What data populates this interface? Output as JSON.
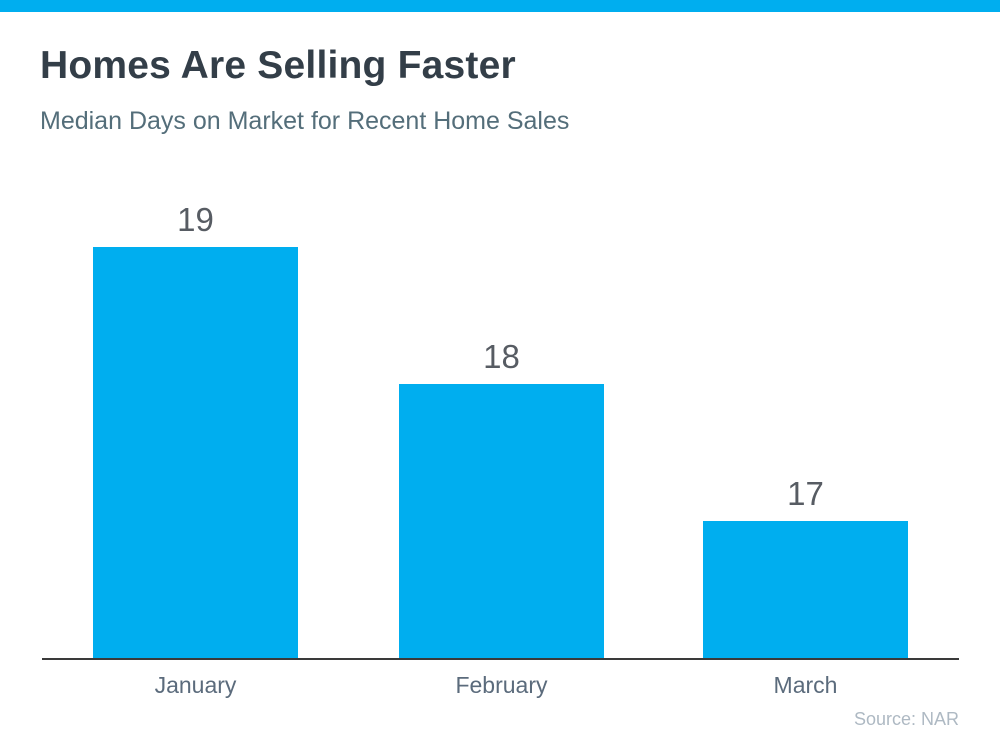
{
  "page": {
    "title": "Homes Are Selling Faster",
    "subtitle": "Median Days on Market for Recent Home Sales",
    "source": "Source: NAR"
  },
  "colors": {
    "accent": "#00AEEF",
    "bar": "#00AEEF",
    "title_text": "#333E48",
    "subtitle_text": "#546E7A",
    "value_label_text": "#575C63",
    "category_label_text": "#5B6B7C",
    "source_text": "#AEB9C3",
    "axis_line": "#3A3A3A"
  },
  "chart_data": {
    "type": "bar",
    "title": "Homes Are Selling Faster",
    "subtitle": "Median Days on Market for Recent Home Sales",
    "categories": [
      "January",
      "February",
      "March"
    ],
    "values": [
      19,
      18,
      17
    ],
    "data_labels": [
      "19",
      "18",
      "17"
    ],
    "xlabel": "",
    "ylabel": "",
    "ylim": [
      16,
      20
    ],
    "grid": false,
    "legend": false,
    "bar_color": "#00AEEF",
    "source": "Source: NAR"
  }
}
